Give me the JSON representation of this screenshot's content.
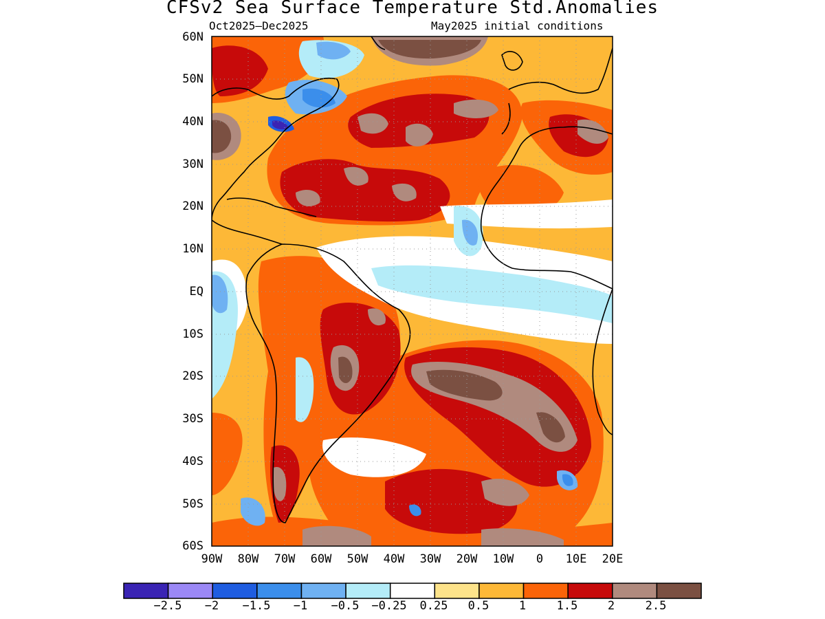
{
  "title": "CFSv2 Sea Surface Temperature Std.Anomalies",
  "subtitle_left": "Oct2025–Dec2025",
  "subtitle_right": "May2025 initial conditions",
  "lat_labels": [
    "60N",
    "50N",
    "40N",
    "30N",
    "20N",
    "10N",
    "EQ",
    "10S",
    "20S",
    "30S",
    "40S",
    "50S",
    "60S"
  ],
  "lon_labels": [
    "90W",
    "80W",
    "70W",
    "60W",
    "50W",
    "40W",
    "30W",
    "20W",
    "10W",
    "0",
    "10E",
    "20E"
  ],
  "colorbar": {
    "colors": [
      "#3a24b4",
      "#9b88f6",
      "#1f5de0",
      "#3b8eeb",
      "#6fb1f2",
      "#b4ecf8",
      "#ffffff",
      "#fde38a",
      "#fdb837",
      "#fb6408",
      "#c70a0a",
      "#b08a7e",
      "#7b5042"
    ],
    "labels": [
      "−2.5",
      "−2",
      "−1.5",
      "−1",
      "−0.5",
      "−0.25",
      "0.25",
      "0.5",
      "1",
      "1.5",
      "2",
      "2.5"
    ]
  },
  "map_palette": {
    "ocean_base": "#fdb837",
    "warm": "#fb6408",
    "hot": "#c70a0a",
    "very_hot": "#b08a7e",
    "extreme": "#7b5042",
    "neutral": "#ffffff",
    "cool": "#b4ecf8",
    "cold": "#6fb1f2",
    "colder": "#3b8eeb",
    "coldest": "#1f5de0",
    "deep_cold": "#3a24b4"
  }
}
